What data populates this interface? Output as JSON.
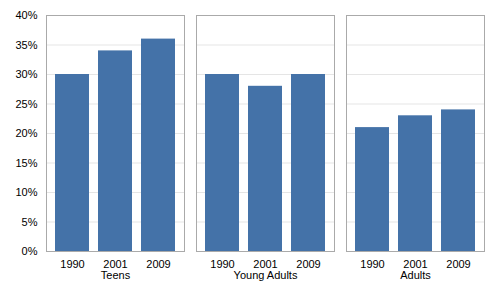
{
  "chart_data": {
    "type": "bar",
    "categories": [
      "Teens",
      "Young Adults",
      "Adults"
    ],
    "series": [
      {
        "name": "1990",
        "values": [
          30,
          30,
          21
        ]
      },
      {
        "name": "2001",
        "values": [
          34,
          28,
          23
        ]
      },
      {
        "name": "2009",
        "values": [
          36,
          30,
          24
        ]
      }
    ],
    "color": "#4472a8",
    "ylim": [
      0,
      40
    ],
    "yticks": [
      {
        "value": 0,
        "label": "0%"
      },
      {
        "value": 5,
        "label": "5%"
      },
      {
        "value": 10,
        "label": "10%"
      },
      {
        "value": 15,
        "label": "15%"
      },
      {
        "value": 20,
        "label": "20%"
      },
      {
        "value": 25,
        "label": "25%"
      },
      {
        "value": 30,
        "label": "30%"
      },
      {
        "value": 35,
        "label": "35%"
      },
      {
        "value": 40,
        "label": "40%"
      }
    ],
    "grid": true
  }
}
